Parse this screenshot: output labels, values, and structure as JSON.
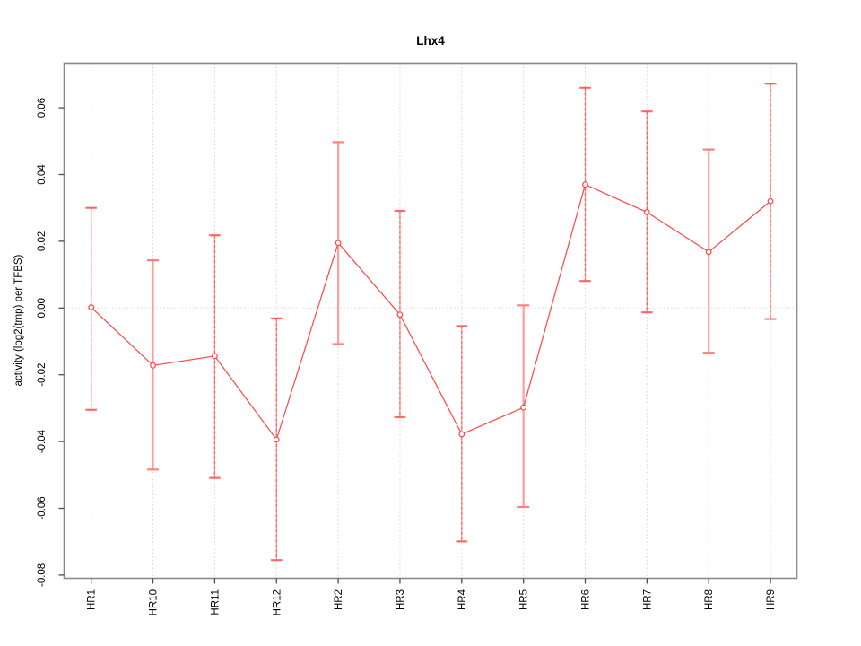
{
  "title": "Lhx4",
  "chart_data": {
    "type": "line",
    "title": "Lhx4",
    "xlabel": "",
    "ylabel": "activity (log2(tmp) per TFBS)",
    "categories": [
      "HR1",
      "HR10",
      "HR11",
      "HR12",
      "HR2",
      "HR3",
      "HR4",
      "HR5",
      "HR6",
      "HR7",
      "HR8",
      "HR9"
    ],
    "series": [
      {
        "name": "activity",
        "values": [
          0.0002,
          -0.0172,
          -0.0144,
          -0.0394,
          0.0195,
          -0.002,
          -0.0378,
          -0.0298,
          0.037,
          0.0287,
          0.0168,
          0.032
        ],
        "err_high": [
          0.03,
          0.0143,
          0.0218,
          -0.0031,
          0.0497,
          0.0291,
          -0.0054,
          0.0008,
          0.066,
          0.0589,
          0.0475,
          0.0672
        ],
        "err_low": [
          -0.0305,
          -0.0484,
          -0.0509,
          -0.0755,
          -0.0108,
          -0.0327,
          -0.0699,
          -0.0596,
          0.0081,
          -0.0013,
          -0.0134,
          -0.0033
        ],
        "bar_styles": [
          "dashed",
          "solid",
          "dashed",
          "dashed",
          "solid",
          "dashed",
          "dashed",
          "solid",
          "dashed",
          "dashed",
          "solid",
          "dashed"
        ]
      }
    ],
    "ylim": [
      -0.0809,
      0.0733
    ],
    "yticks": [
      "0.06",
      "0.04",
      "0.02",
      "0.00",
      "-0.02",
      "-0.04",
      "-0.06",
      "-0.08"
    ],
    "ytick_values": [
      0.06,
      0.04,
      0.02,
      0.0,
      -0.02,
      -0.04,
      -0.06,
      -0.08
    ],
    "grid": "vertical dotted gridline per category; dotted horizontal line at 0 only",
    "legend": "none",
    "marker": "open-circle",
    "colors": {
      "line": "#ff4444",
      "marker_stroke": "#ff4444",
      "errbar_solid": "#ff9e9e",
      "errbar_dashed": "#ff5555",
      "errbar_cap": "#ff8080",
      "gridline": "#d4d4d4",
      "zero_line": "#d9d9d9",
      "box": "#8a8a8a",
      "tick": "#4d4d4d",
      "text": "#000000"
    }
  }
}
